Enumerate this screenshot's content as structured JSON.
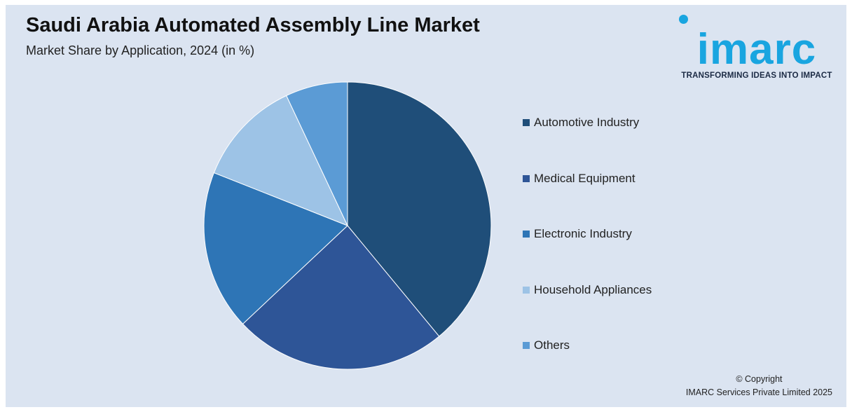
{
  "header": {
    "title": "Saudi Arabia Automated Assembly Line Market",
    "subtitle": "Market Share by Application, 2024 (in %)"
  },
  "logo": {
    "wordmark": "imarc",
    "tagline": "TRANSFORMING IDEAS INTO IMPACT",
    "color": "#19a5e0"
  },
  "chart_data": {
    "type": "pie",
    "categories": [
      "Automotive Industry",
      "Medical Equipment",
      "Electronic Industry",
      "Household Appliances",
      "Others"
    ],
    "values": [
      39,
      24,
      18,
      12,
      7
    ],
    "unit": "%",
    "colors": [
      "#1f4e79",
      "#2e5597",
      "#2e75b6",
      "#9dc3e6",
      "#5b9bd5"
    ],
    "start_angle_deg": 0,
    "direction": "clockwise",
    "legend_position": "right"
  },
  "footer": {
    "copyright_line1": "© Copyright",
    "copyright_line2": "IMARC Services Private Limited 2025"
  }
}
